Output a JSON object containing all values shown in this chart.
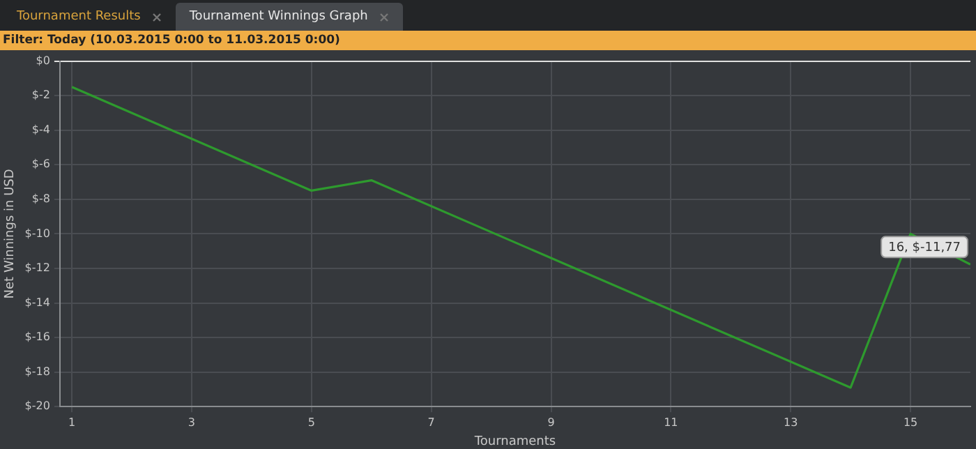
{
  "chart_data": {
    "type": "line",
    "title": "Tournament Winnings Graph",
    "subtitle": "Filter: Today (10.03.2015 0:00 to 11.03.2015 0:00)",
    "annotations": [
      "Tournament Results",
      {
        "text": "16, $-11,77",
        "x": 16,
        "y": -11.77
      }
    ],
    "xlabel": "Tournaments",
    "ylabel": "Net Winnings in USD",
    "x": [
      1,
      5,
      6,
      14,
      15,
      16
    ],
    "series": [
      {
        "color": "#2e9a2e",
        "values": [
          -1.5,
          -7.5,
          -6.9,
          -18.9,
          -10,
          -11.77
        ]
      }
    ],
    "xlim": [
      0.8,
      16
    ],
    "xticks": [
      1,
      3,
      5,
      7,
      9,
      11,
      13,
      15
    ],
    "ylim": [
      -20,
      0
    ],
    "yticks": [
      {
        "value": 0,
        "label": "$0"
      },
      {
        "value": -2,
        "label": "$-2"
      },
      {
        "value": -4,
        "label": "$-4"
      },
      {
        "value": -6,
        "label": "$-6"
      },
      {
        "value": -8,
        "label": "$-8"
      },
      {
        "value": -10,
        "label": "$-10"
      },
      {
        "value": -12,
        "label": "$-12"
      },
      {
        "value": -14,
        "label": "$-14"
      },
      {
        "value": -16,
        "label": "$-16"
      },
      {
        "value": -18,
        "label": "$-18"
      },
      {
        "value": -20,
        "label": "$-20"
      }
    ],
    "grid": true,
    "marker": "none",
    "line_style": "solid",
    "legend": false
  }
}
